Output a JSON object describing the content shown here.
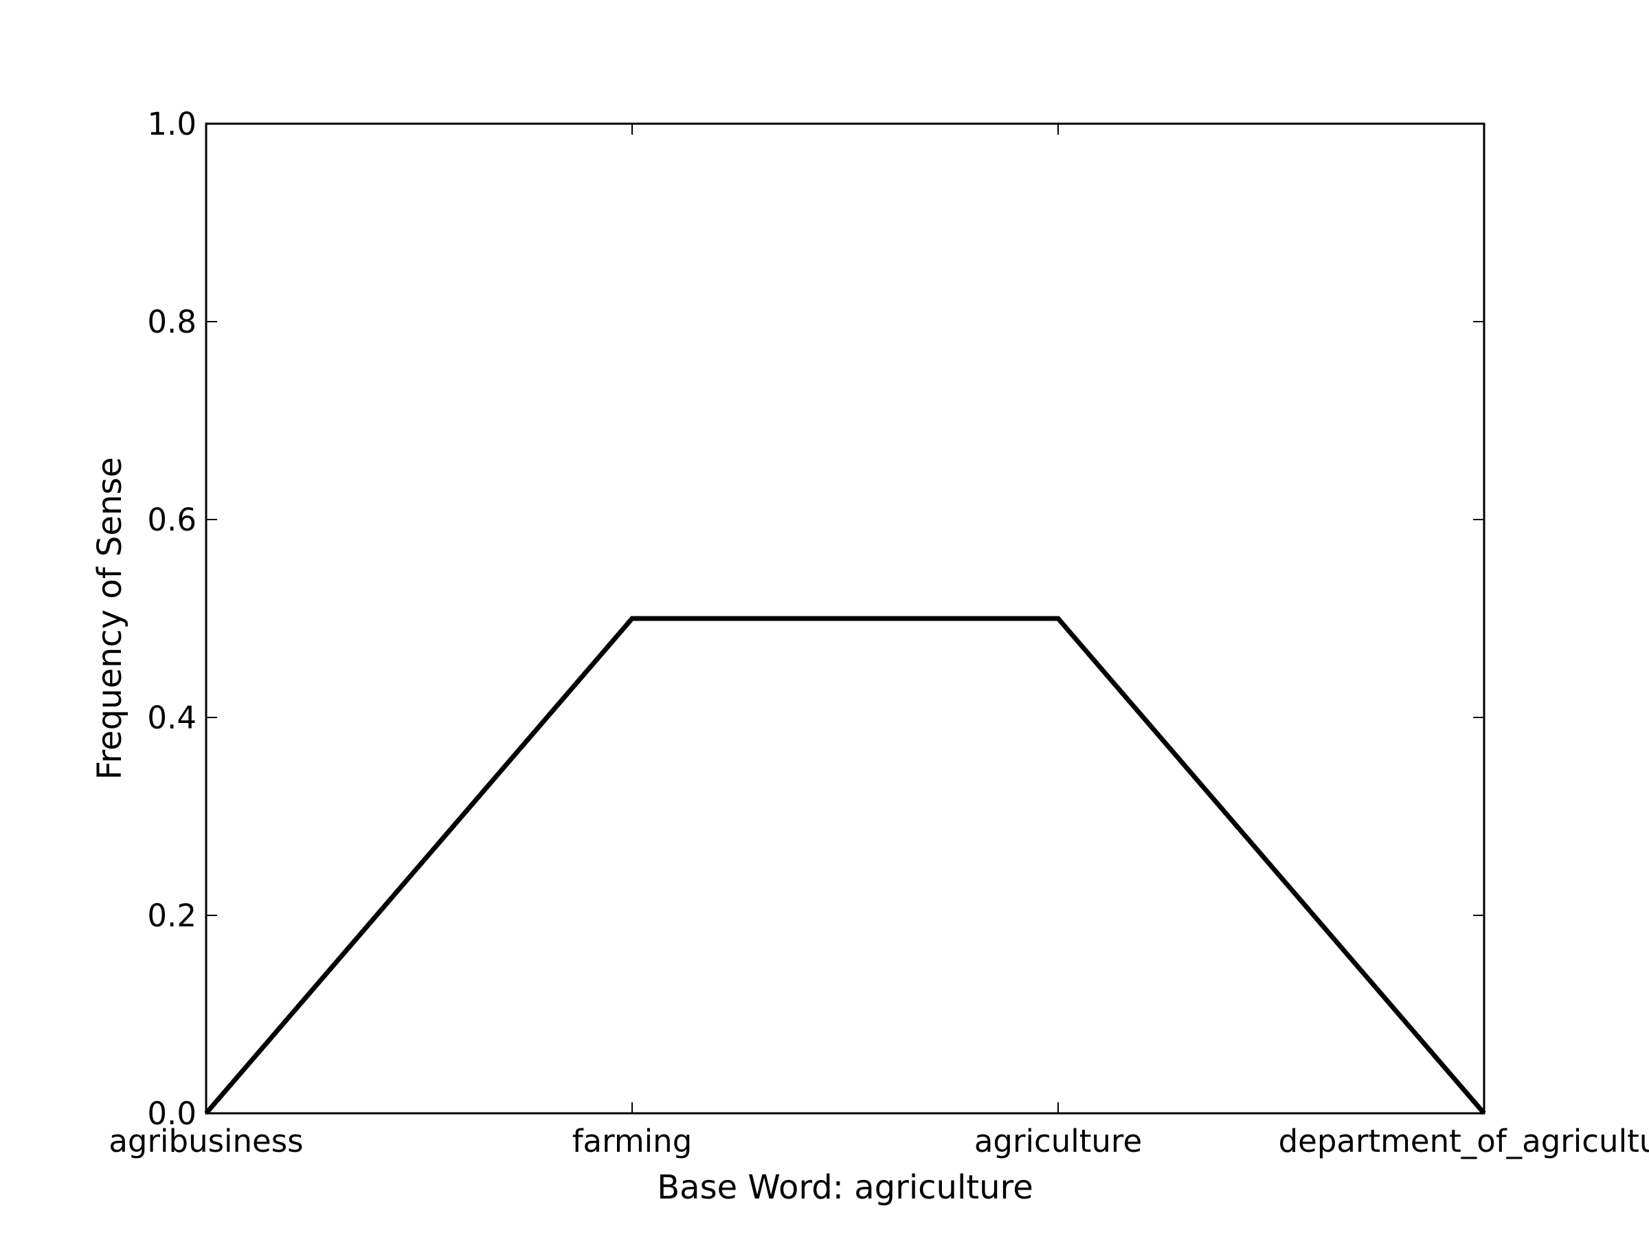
{
  "chart_data": {
    "type": "line",
    "categories": [
      "agribusiness",
      "farming",
      "agriculture",
      "department_of_agriculture"
    ],
    "series": [
      {
        "values": [
          0.0,
          0.5,
          0.5,
          0.0
        ]
      }
    ],
    "xlabel": "Base Word: agriculture",
    "ylabel": "Frequency of Sense",
    "ylim": [
      0.0,
      1.0
    ],
    "yticks": [
      "0.0",
      "0.2",
      "0.4",
      "0.6",
      "0.8",
      "1.0"
    ],
    "grid": false,
    "line_color": "#000000"
  }
}
